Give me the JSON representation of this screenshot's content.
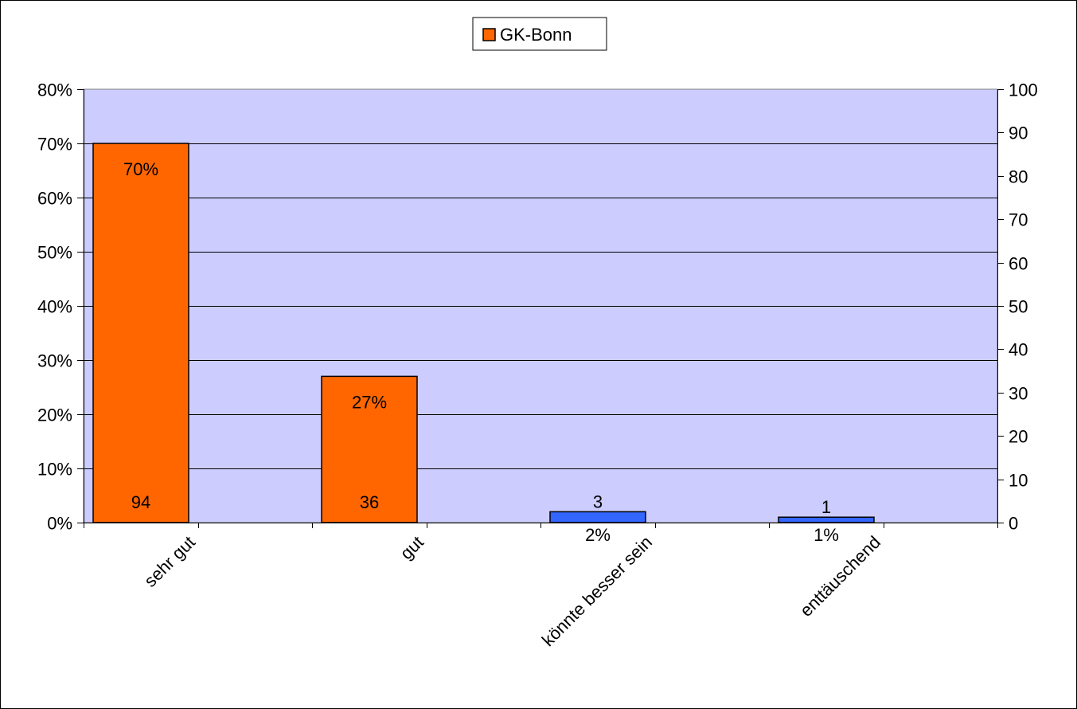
{
  "chart_data": {
    "type": "bar",
    "legend": {
      "entries": [
        "GK-Bonn"
      ],
      "position": "top-center"
    },
    "categories": [
      "sehr gut",
      "gut",
      "könnte besser sein",
      "enttäuschend"
    ],
    "series": [
      {
        "name": "GK-Bonn",
        "axis": "left",
        "values": [
          70,
          27,
          2,
          1
        ],
        "labels": [
          "70%",
          "27%",
          "2%",
          "1%"
        ]
      }
    ],
    "counts": [
      94,
      36,
      3,
      1
    ],
    "bar_colors": [
      "#ff6600",
      "#ff6600",
      "#3366ff",
      "#3366ff"
    ],
    "plot_background": "#ccccff",
    "y_left": {
      "ylim": [
        0,
        80
      ],
      "ticks": [
        0,
        10,
        20,
        30,
        40,
        50,
        60,
        70,
        80
      ],
      "tick_labels": [
        "0%",
        "10%",
        "20%",
        "30%",
        "40%",
        "50%",
        "60%",
        "70%",
        "80%"
      ]
    },
    "y_right": {
      "ylim": [
        0,
        100
      ],
      "ticks": [
        0,
        10,
        20,
        30,
        40,
        50,
        60,
        70,
        80,
        90,
        100
      ],
      "tick_labels": [
        "0",
        "10",
        "20",
        "30",
        "40",
        "50",
        "60",
        "70",
        "80",
        "90",
        "100"
      ]
    },
    "grid": true,
    "title": "",
    "xlabel": "",
    "ylabel": ""
  }
}
